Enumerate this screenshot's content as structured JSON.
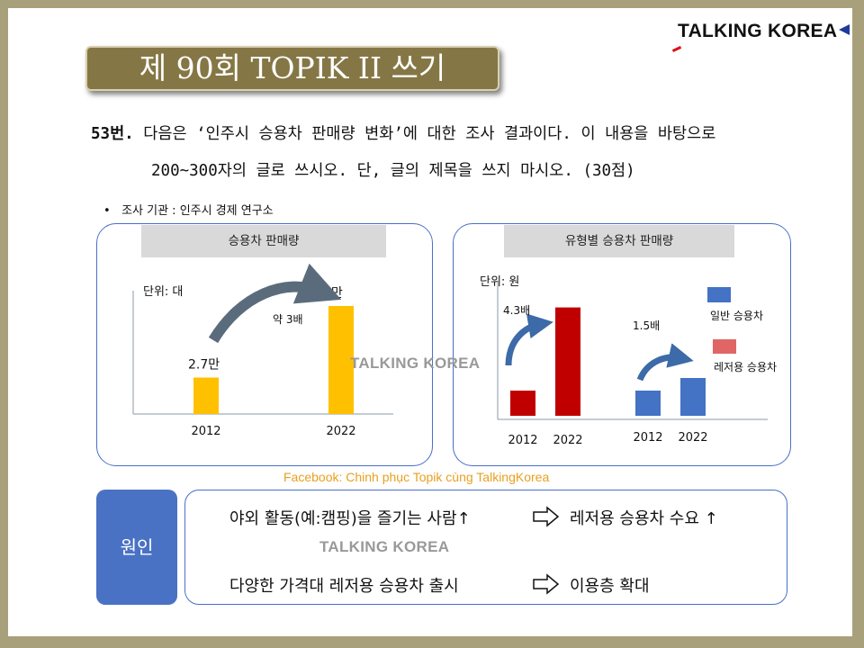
{
  "brand": "TALKING KOREA",
  "title": "제 90회 TOPIK II 쓰기",
  "question": {
    "number": "53번.",
    "line1": "다음은 ‘인주시 승용차 판매량 변화’에 대한 조사 결과이다. 이 내용을 바탕으로",
    "line2": "200~300자의 글로 쓰시오. 단, 글의 제목을 쓰지 마시오. (30점)"
  },
  "survey": "조사 기관 : 인주시 경제 연구소",
  "chart_data": [
    {
      "type": "bar",
      "title": "승용차 판매량",
      "unit_label": "단위: 대",
      "categories": [
        "2012",
        "2022"
      ],
      "values": [
        27000,
        80000
      ],
      "value_labels": [
        "2.7만",
        "8만"
      ],
      "annotation": "약 3배",
      "color": "#ffc000"
    },
    {
      "type": "bar",
      "title": "유형별 승용차 판매량",
      "unit_label": "단위: 원",
      "groups": [
        {
          "category_labels": [
            "2012",
            "2022"
          ],
          "values": [
            1.0,
            4.3
          ],
          "color": "#c00000",
          "annotation": "4.3배"
        },
        {
          "category_labels": [
            "2012",
            "2022"
          ],
          "values": [
            1.0,
            1.5
          ],
          "color": "#4472c4",
          "annotation": "1.5배"
        }
      ],
      "legend": [
        {
          "label": "일반 승용차",
          "color": "#4472c4"
        },
        {
          "label": "레저용 승용차",
          "color": "#e06666"
        }
      ]
    }
  ],
  "footer_watermark": "Facebook: Chinh phục Topik cùng TalkingKorea",
  "cause": {
    "label": "원인",
    "row1_left": "야외 활동(예:캠핑)을 즐기는 사람",
    "row1_right": "레저용 승용차 수요",
    "row2_left": "다양한 가격대 레저용 승용차 출시",
    "row2_right": "이용층 확대",
    "up_arrow": "↑"
  }
}
